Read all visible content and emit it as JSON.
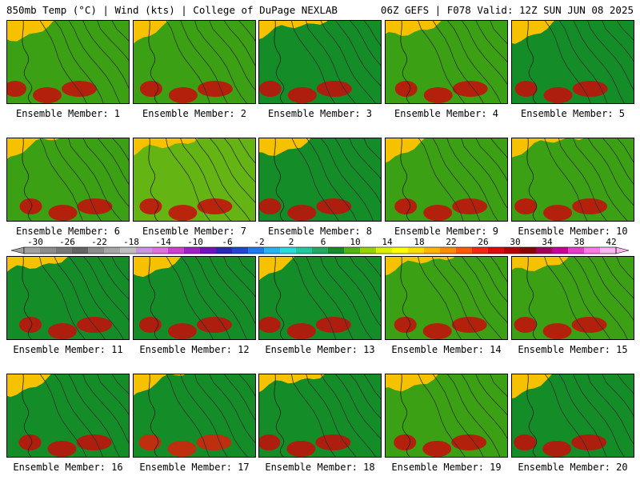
{
  "header": {
    "left": "850mb Temp (°C) | Wind (kts) | College of DuPage NEXLAB",
    "right": "06Z GEFS | F078 Valid: 12Z SUN JUN 08 2025"
  },
  "colorbar": {
    "labels": [
      "-30",
      "-26",
      "-22",
      "-18",
      "-14",
      "-10",
      "-6",
      "-2",
      "2",
      "6",
      "10",
      "14",
      "18",
      "22",
      "26",
      "30",
      "34",
      "38",
      "42"
    ],
    "colors": [
      "#a0a0a0",
      "#8c8c8c",
      "#787878",
      "#646464",
      "#8c8c8c",
      "#a6a6a6",
      "#bfbfbf",
      "#c896e0",
      "#e070e0",
      "#d040d0",
      "#a020c8",
      "#7010c0",
      "#2828b4",
      "#1e46d2",
      "#1e78f0",
      "#28b4f0",
      "#28dcdc",
      "#20c8a0",
      "#20aa64",
      "#148c28",
      "#50b414",
      "#96d200",
      "#dcf000",
      "#ffff00",
      "#ffdc00",
      "#ffb400",
      "#ff8c00",
      "#ff5a00",
      "#f02814",
      "#dc0a0a",
      "#b40000",
      "#8c0000",
      "#a0005a",
      "#c80096",
      "#e63cc8",
      "#ff78e6",
      "#ffb4f0"
    ]
  },
  "panel_label_prefix": "Ensemble Member:",
  "members": [
    {
      "label": "Ensemble Member: 1",
      "warmth": 0.7
    },
    {
      "label": "Ensemble Member: 2",
      "warmth": 0.8
    },
    {
      "label": "Ensemble Member: 3",
      "warmth": 0.55
    },
    {
      "label": "Ensemble Member: 4",
      "warmth": 0.7
    },
    {
      "label": "Ensemble Member: 5",
      "warmth": 0.6
    },
    {
      "label": "Ensemble Member: 6",
      "warmth": 0.7
    },
    {
      "label": "Ensemble Member: 7",
      "warmth": 0.85
    },
    {
      "label": "Ensemble Member: 8",
      "warmth": 0.6
    },
    {
      "label": "Ensemble Member: 9",
      "warmth": 0.75
    },
    {
      "label": "Ensemble Member: 10",
      "warmth": 0.7
    },
    {
      "label": "Ensemble Member: 11",
      "warmth": 0.65
    },
    {
      "label": "Ensemble Member: 12",
      "warmth": 0.6
    },
    {
      "label": "Ensemble Member: 13",
      "warmth": 0.6
    },
    {
      "label": "Ensemble Member: 14",
      "warmth": 0.7
    },
    {
      "label": "Ensemble Member: 15",
      "warmth": 0.7
    },
    {
      "label": "Ensemble Member: 16",
      "warmth": 0.55
    },
    {
      "label": "Ensemble Member: 17",
      "warmth": 0.45
    },
    {
      "label": "Ensemble Member: 18",
      "warmth": 0.55
    },
    {
      "label": "Ensemble Member: 19",
      "warmth": 0.75
    },
    {
      "label": "Ensemble Member: 20",
      "warmth": 0.6
    }
  ]
}
